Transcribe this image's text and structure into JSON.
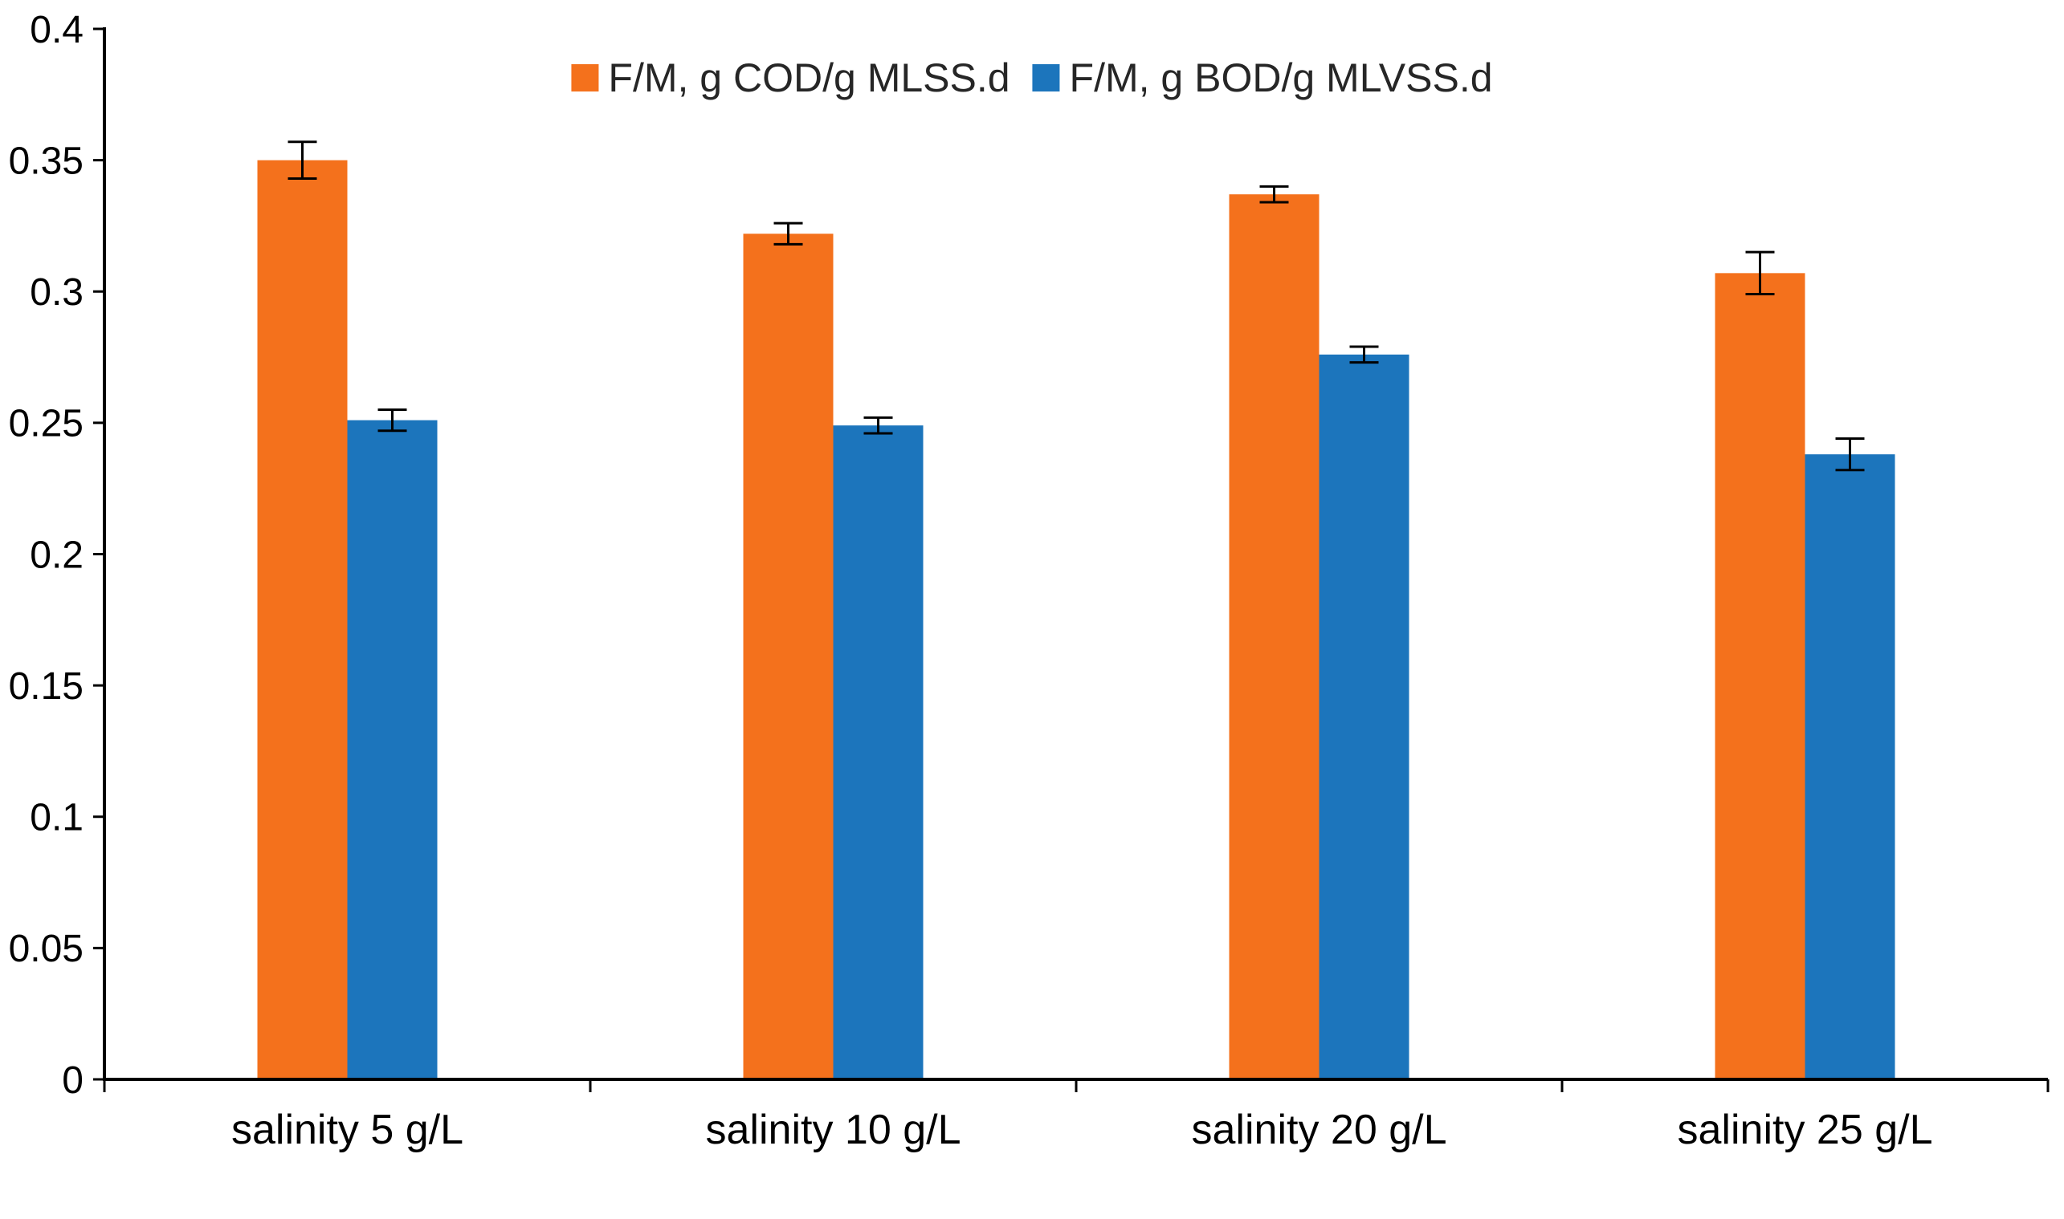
{
  "chart_data": {
    "type": "bar",
    "title": "",
    "xlabel": "",
    "ylabel": "",
    "categories": [
      "salinity 5 g/L",
      "salinity 10 g/L",
      "salinity 20 g/L",
      "salinity 25 g/L"
    ],
    "series": [
      {
        "name": "F/M, g COD/g MLSS.d",
        "color": "#F4711C",
        "values": [
          0.35,
          0.322,
          0.337,
          0.307
        ],
        "errors": [
          0.007,
          0.004,
          0.003,
          0.008
        ]
      },
      {
        "name": "F/M, g BOD/g MLVSS.d",
        "color": "#1C75BC",
        "values": [
          0.251,
          0.249,
          0.276,
          0.238
        ],
        "errors": [
          0.004,
          0.003,
          0.003,
          0.006
        ]
      }
    ],
    "ylim": [
      0,
      0.4
    ],
    "ytick_step": 0.05,
    "ytick_labels": [
      "0",
      "0.05",
      "0.1",
      "0.15",
      "0.2",
      "0.25",
      "0.3",
      "0.35",
      "0.4"
    ],
    "grid": false,
    "legend_position": "top-center-inside",
    "axis_color": "#000000",
    "tick_label_color": "#000000",
    "error_bar_color": "#000000"
  }
}
